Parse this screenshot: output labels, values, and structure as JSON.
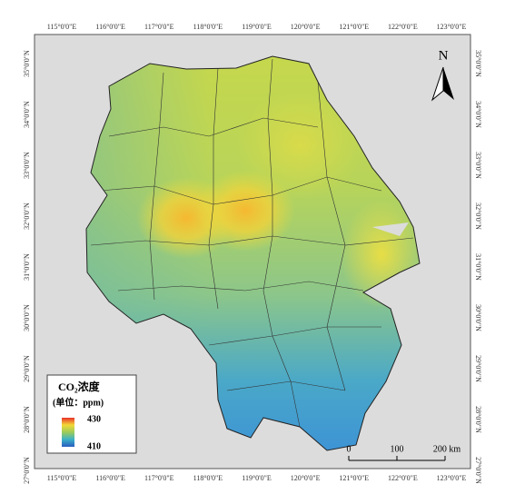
{
  "map": {
    "longitude_labels": [
      "115°0'0\"E",
      "116°0'0\"E",
      "117°0'0\"E",
      "118°0'0\"E",
      "119°0'0\"E",
      "120°0'0\"E",
      "121°0'0\"E",
      "122°0'0\"E",
      "123°0'0\"E"
    ],
    "latitude_labels": [
      "27°0'0\"N",
      "28°0'0\"N",
      "29°0'0\"N",
      "30°0'0\"N",
      "31°0'0\"N",
      "32°0'0\"N",
      "33°0'0\"N",
      "34°0'0\"N",
      "35°0'0\"N"
    ],
    "north": "N",
    "legend": {
      "title": "CO₂浓度",
      "unit": "(单位：ppm)",
      "max": 430,
      "min": 410
    },
    "scale_bar": {
      "labels": [
        "0",
        "100",
        "200 km"
      ]
    }
  }
}
